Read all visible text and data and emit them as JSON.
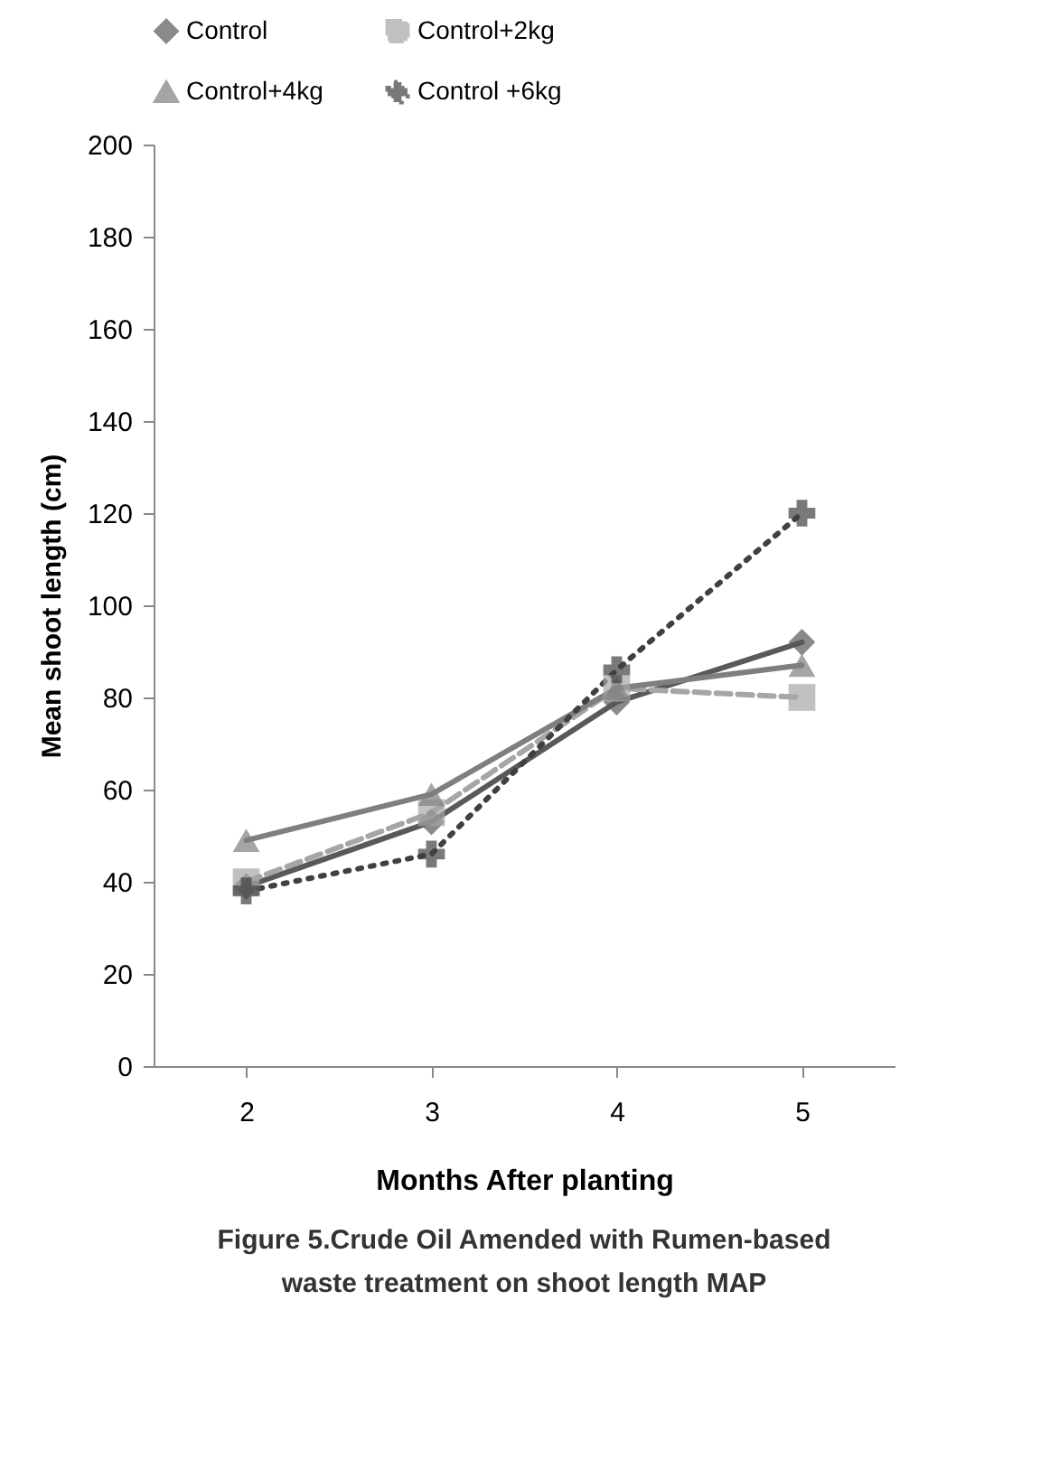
{
  "chart_data": {
    "type": "line",
    "title": "Figure 5.Crude Oil Amended  with Rumen-based waste treatment  on shoot length MAP",
    "xlabel": "Months After planting",
    "ylabel": "Mean shoot length (cm)",
    "categories": [
      "2",
      "3",
      "4",
      "5"
    ],
    "series": [
      {
        "name": "Control",
        "color": "#595959",
        "marker": "diamond",
        "line_style": "solid",
        "values": [
          39,
          53,
          79,
          92
        ]
      },
      {
        "name": "Control+2kg",
        "color": "#a6a6a6",
        "marker": "square",
        "line_style": "dashed",
        "values": [
          40,
          55,
          82,
          80
        ]
      },
      {
        "name": "Control+4kg",
        "color": "#7f7f7f",
        "marker": "triangle",
        "line_style": "solid",
        "values": [
          49,
          59,
          82,
          87
        ]
      },
      {
        "name": "Control +6kg",
        "color": "#404040",
        "marker": "cross",
        "line_style": "dotted",
        "values": [
          38,
          46,
          86,
          120
        ]
      }
    ],
    "ylim": [
      0,
      200
    ],
    "yticks": [
      0,
      20,
      40,
      60,
      80,
      100,
      120,
      140,
      160,
      180,
      200
    ],
    "grid": false,
    "legend": "top"
  }
}
